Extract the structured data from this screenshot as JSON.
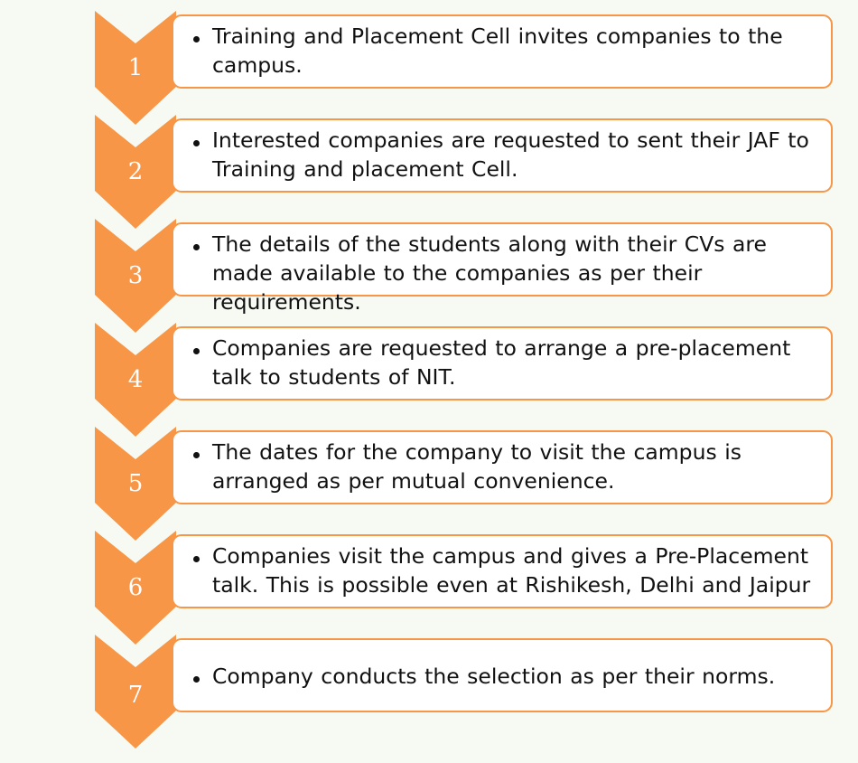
{
  "colors": {
    "accent": "#f79646",
    "background": "#f6faf3",
    "box_fill": "#ffffff",
    "text": "#111111"
  },
  "steps": [
    {
      "number": "1",
      "text": "Training and Placement Cell invites companies to the campus."
    },
    {
      "number": "2",
      "text": "Interested companies are requested to sent their JAF to Training and placement Cell."
    },
    {
      "number": "3",
      "text": "The details of the students along with their CVs are made available to the companies as per their requirements."
    },
    {
      "number": "4",
      "text": "Companies are requested to arrange a pre-placement talk to students of NIT."
    },
    {
      "number": "5",
      "text": "The dates for the company to visit the campus is arranged as per mutual convenience."
    },
    {
      "number": "6",
      "text": "Companies visit the campus and gives a Pre-Placement talk. This is possible even at Rishikesh, Delhi and Jaipur"
    },
    {
      "number": "7",
      "text": "Company conducts the selection as per their norms."
    }
  ]
}
